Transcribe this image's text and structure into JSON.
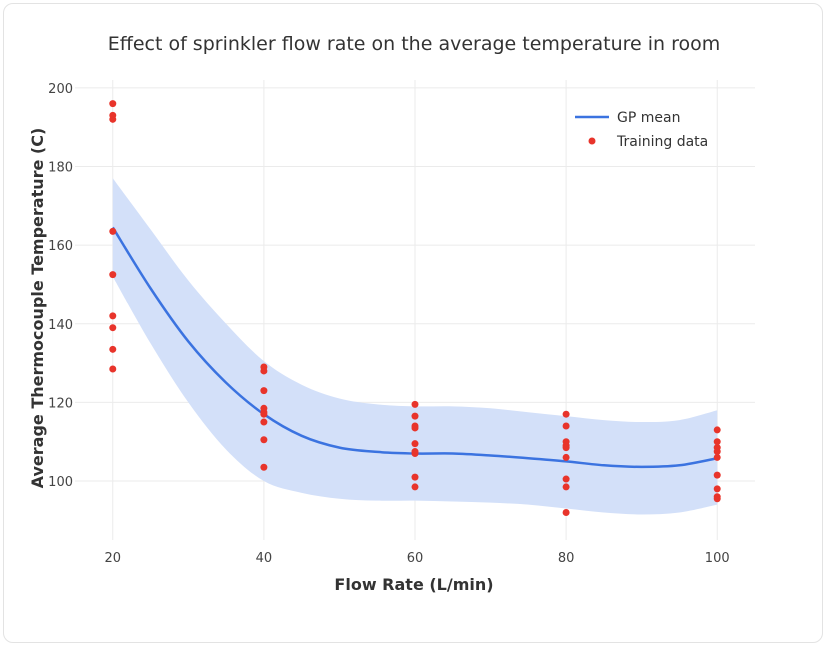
{
  "chart_data": {
    "type": "scatter",
    "title": "Effect of sprinkler flow rate on the average temperature in room",
    "xlabel": "Flow Rate (L/min)",
    "ylabel": "Average Thermocouple Temperature (C)",
    "xlim": [
      15,
      105
    ],
    "ylim": [
      85,
      202
    ],
    "xticks": [
      20,
      40,
      60,
      80,
      100
    ],
    "yticks": [
      100,
      120,
      140,
      160,
      180,
      200
    ],
    "grid": true,
    "legend_position": "top-right",
    "colors": {
      "mean": "#3b73e0",
      "band": "#d3e0f9",
      "points": "#e8342b",
      "grid": "#ebebeb"
    },
    "series": [
      {
        "name": "GP mean",
        "type": "line",
        "x": [
          20,
          25,
          30,
          35,
          40,
          45,
          50,
          55,
          60,
          65,
          70,
          75,
          80,
          85,
          90,
          95,
          100
        ],
        "y": [
          164.5,
          149.0,
          135.5,
          125.0,
          117.0,
          111.5,
          108.5,
          107.4,
          107.0,
          107.0,
          106.5,
          105.8,
          105.0,
          104.0,
          103.6,
          104.0,
          105.8
        ],
        "lower": [
          152.0,
          135.0,
          120.0,
          108.0,
          100.0,
          97.0,
          95.5,
          95.0,
          95.0,
          94.8,
          94.5,
          94.0,
          93.0,
          92.0,
          91.5,
          92.0,
          94.0
        ],
        "upper": [
          177.0,
          164.0,
          151.0,
          140.0,
          130.5,
          124.5,
          121.0,
          119.5,
          119.0,
          119.0,
          118.5,
          117.5,
          116.5,
          115.5,
          115.0,
          115.5,
          118.0
        ]
      },
      {
        "name": "Training data",
        "type": "scatter",
        "x": [
          20,
          20,
          20,
          20,
          20,
          20,
          20,
          20,
          20,
          40,
          40,
          40,
          40,
          40,
          40,
          40,
          40,
          40,
          60,
          60,
          60,
          60,
          60,
          60,
          60,
          60,
          60,
          80,
          80,
          80,
          80,
          80,
          80,
          80,
          80,
          80,
          100,
          100,
          100,
          100,
          100,
          100,
          100,
          100,
          100
        ],
        "y": [
          196.0,
          193.0,
          192.0,
          163.5,
          152.5,
          142.0,
          139.0,
          133.5,
          128.5,
          129.0,
          128.0,
          123.0,
          118.5,
          117.5,
          117.0,
          115.0,
          110.5,
          103.5,
          119.5,
          116.5,
          114.0,
          113.5,
          109.5,
          107.5,
          107.0,
          101.0,
          98.5,
          117.0,
          114.0,
          110.0,
          109.0,
          108.5,
          106.0,
          100.5,
          98.5,
          92.0,
          113.0,
          110.0,
          108.5,
          107.5,
          106.0,
          101.5,
          98.0,
          96.0,
          95.5
        ]
      }
    ]
  }
}
